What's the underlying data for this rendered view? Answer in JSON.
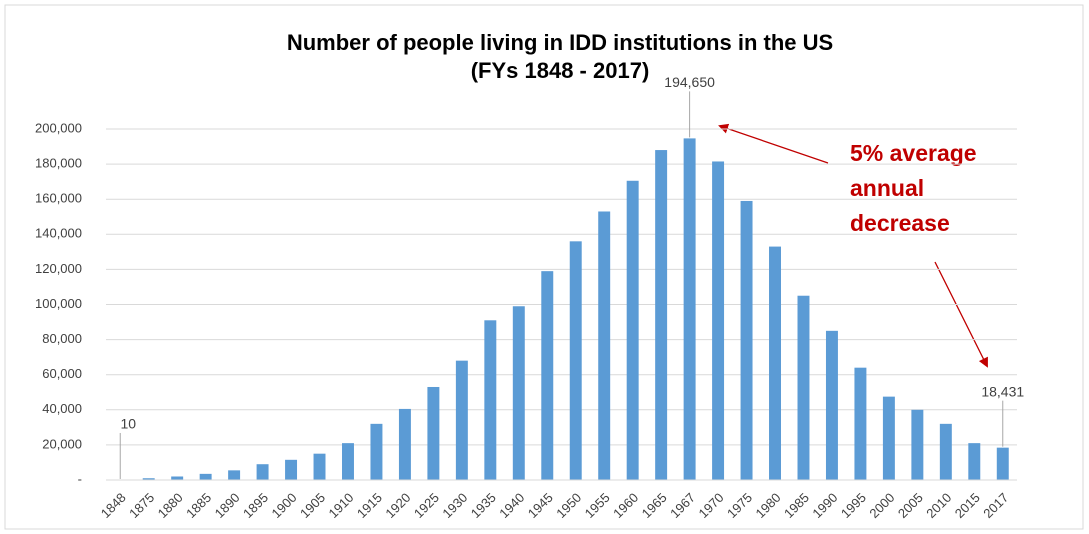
{
  "chart_data": {
    "type": "bar",
    "title": "Number of people living in IDD institutions in the US",
    "subtitle": "(FYs 1848 - 2017)",
    "categories": [
      "1848",
      "1875",
      "1880",
      "1885",
      "1890",
      "1895",
      "1900",
      "1905",
      "1910",
      "1915",
      "1920",
      "1925",
      "1930",
      "1935",
      "1940",
      "1945",
      "1950",
      "1955",
      "1960",
      "1965",
      "1967",
      "1970",
      "1975",
      "1980",
      "1985",
      "1990",
      "1995",
      "2000",
      "2005",
      "2010",
      "2015",
      "2017"
    ],
    "values": [
      10,
      1000,
      2000,
      3500,
      5500,
      9000,
      11500,
      15000,
      21000,
      32000,
      40500,
      53000,
      68000,
      91000,
      99000,
      119000,
      136000,
      153000,
      170500,
      188000,
      194650,
      181500,
      159000,
      133000,
      105000,
      85000,
      64000,
      47500,
      40000,
      32000,
      21000,
      18431
    ],
    "value_labels": [
      "10",
      null,
      null,
      null,
      null,
      null,
      null,
      null,
      null,
      null,
      null,
      null,
      null,
      null,
      null,
      null,
      null,
      null,
      null,
      null,
      "194,650",
      null,
      null,
      null,
      null,
      null,
      null,
      null,
      null,
      null,
      null,
      "18,431"
    ],
    "color": "#5b9bd5",
    "ylim": [
      0,
      200000
    ],
    "yticks": [
      {
        "value": 0,
        "label": "-"
      },
      {
        "value": 20000,
        "label": "20,000"
      },
      {
        "value": 40000,
        "label": "40,000"
      },
      {
        "value": 60000,
        "label": "60,000"
      },
      {
        "value": 80000,
        "label": "80,000"
      },
      {
        "value": 100000,
        "label": "100,000"
      },
      {
        "value": 120000,
        "label": "120,000"
      },
      {
        "value": 140000,
        "label": "140,000"
      },
      {
        "value": 160000,
        "label": "160,000"
      },
      {
        "value": 180000,
        "label": "180,000"
      },
      {
        "value": 200000,
        "label": "200,000"
      }
    ],
    "grid": true,
    "annotation": [
      "5% average",
      "annual",
      "decrease"
    ]
  }
}
